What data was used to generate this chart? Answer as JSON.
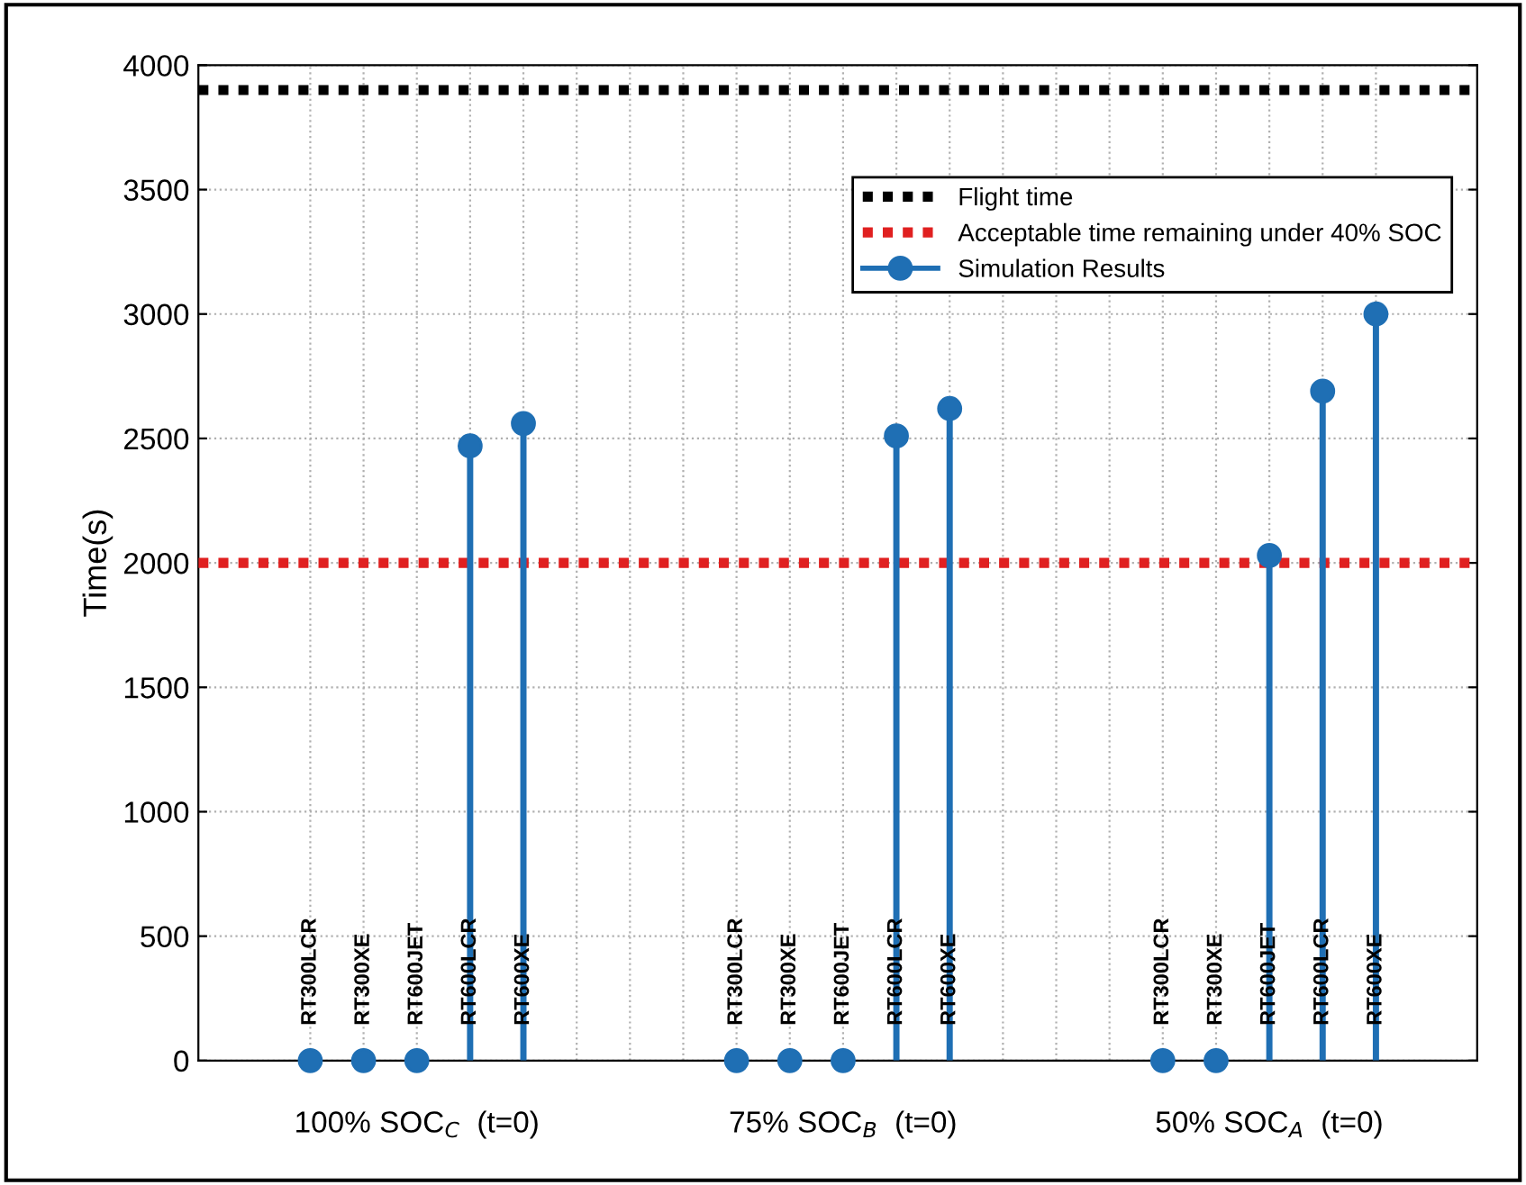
{
  "chart_data": {
    "type": "lollipop",
    "ylabel": "Time(s)",
    "categories": [
      "RT300LCR",
      "RT300XE",
      "RT600JET",
      "RT600LCR",
      "RT600XE",
      null,
      null,
      null,
      "RT300LCR",
      "RT300XE",
      "RT600JET",
      "RT600LCR",
      "RT600XE",
      null,
      null,
      null,
      "RT300LCR",
      "RT300XE",
      "RT600JET",
      "RT600LCR",
      "RT600XE"
    ],
    "series": [
      {
        "name": "Simulation Results",
        "color": "#1f6fb4",
        "values": [
          0,
          0,
          0,
          2470,
          2560,
          null,
          null,
          null,
          0,
          0,
          0,
          2510,
          2620,
          null,
          null,
          null,
          0,
          0,
          2030,
          2690,
          3000
        ]
      }
    ],
    "ylim": [
      0,
      4000
    ],
    "yticks": [
      0,
      500,
      1000,
      1500,
      2000,
      2500,
      3000,
      3500,
      4000
    ],
    "ref_lines": [
      {
        "axis": "y",
        "value": 3900,
        "label": "Flight time",
        "color": "#000000",
        "line_style": "dotted"
      },
      {
        "axis": "y",
        "value": 2000,
        "label": "Acceptable time remaining under 40% SOC",
        "color": "#e02020",
        "line_style": "dotted"
      }
    ],
    "annotations": [
      "100% SOC$_{C}$  (t=0)",
      "75% SOC$_{B}$  (t=0)",
      "50% SOC$_{A}$  (t=0)"
    ],
    "grid": true,
    "legend": "top right",
    "marker": "circle"
  }
}
